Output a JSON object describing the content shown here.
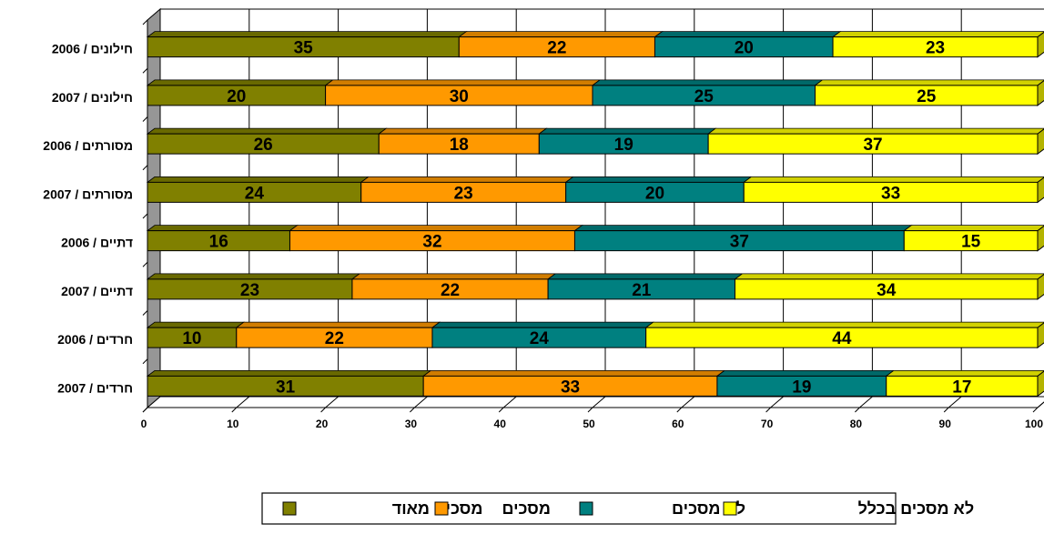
{
  "chart_data": {
    "type": "bar",
    "orientation": "horizontal",
    "stacked": "percent",
    "categories": [
      "חילונים / 2006",
      "חילונים / 2007",
      "מסורתים / 2006",
      "מסורתים / 2007",
      "דתיים / 2006",
      "דתיים / 2007",
      "חרדים / 2006",
      "חרדים / 2007"
    ],
    "series": [
      {
        "name": "מסכים מאוד",
        "color": "#808000",
        "values": [
          35,
          20,
          26,
          24,
          16,
          23,
          10,
          31
        ]
      },
      {
        "name": "מסכים",
        "color": "#FF9900",
        "values": [
          22,
          30,
          18,
          23,
          32,
          22,
          22,
          33
        ]
      },
      {
        "name": "לא מסכים",
        "color": "#008080",
        "values": [
          20,
          25,
          19,
          20,
          37,
          21,
          24,
          19
        ]
      },
      {
        "name": "לא מסכים בכלל",
        "color": "#FFFF00",
        "values": [
          23,
          25,
          37,
          33,
          15,
          34,
          44,
          17
        ]
      }
    ],
    "xlim": [
      0,
      100
    ],
    "xticks": [
      0,
      10,
      20,
      30,
      40,
      50,
      60,
      70,
      80,
      90,
      100
    ],
    "grid": "vertical",
    "legend": "bottom-center",
    "data_labels": true
  }
}
